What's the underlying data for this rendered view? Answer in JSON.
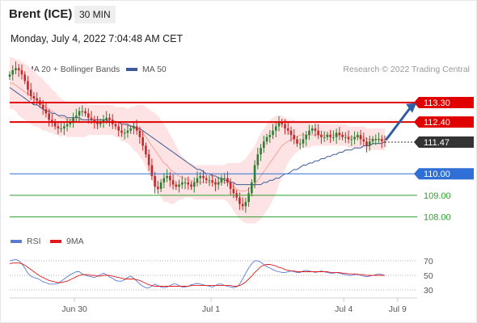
{
  "header": {
    "instrument": "Brent (ICE)",
    "timeframe": "30 MIN",
    "datetime": "Monday, July 4, 2022 7:04:48 AM CET"
  },
  "legend_top": [
    {
      "label": "MA 20 + Bollinger Bands",
      "color": "#f28b82"
    },
    {
      "label": "MA 50",
      "color": "#3d5a98"
    }
  ],
  "credit": "Research © 2022 Trading Central",
  "legend_bottom": [
    {
      "label": "RSI",
      "color": "#5b7bd5"
    },
    {
      "label": "9MA",
      "color": "#e31a1c"
    }
  ],
  "colors": {
    "up": "#2e7d32",
    "down": "#c62828",
    "resistance": "#e00000",
    "pivot": "#2f6fd6",
    "support": "#2e9e2e",
    "last": "#333333",
    "arrow": "#2f5ea8",
    "band": "#fde3e3",
    "ma20": "#f28b82",
    "ma50": "#3d5a98",
    "rsi": "#5b7bd5",
    "rsi_ma": "#e31a1c"
  },
  "chart_data": [
    {
      "type": "candlestick",
      "title": "Brent (ICE)",
      "timeframe": "30 MIN",
      "x_ticks": [
        "Jun 30",
        "Jul 1",
        "Jul 4",
        "Jul 9"
      ],
      "ylim": [
        107.5,
        114.5
      ],
      "levels": [
        {
          "value": 113.3,
          "label": "113.30",
          "kind": "resistance"
        },
        {
          "value": 112.4,
          "label": "112.40",
          "kind": "resistance"
        },
        {
          "value": 111.47,
          "label": "111.47",
          "kind": "last"
        },
        {
          "value": 110.0,
          "label": "110.00",
          "kind": "pivot"
        },
        {
          "value": 109.0,
          "label": "109.00",
          "kind": "support"
        },
        {
          "value": 108.0,
          "label": "108.00",
          "kind": "support"
        }
      ],
      "close": [
        114.6,
        114.8,
        114.9,
        114.8,
        114.6,
        114.3,
        113.9,
        113.6,
        113.5,
        113.4,
        113.2,
        113.0,
        112.8,
        112.5,
        112.4,
        112.2,
        112.1,
        112.1,
        112.2,
        112.3,
        112.4,
        112.6,
        112.7,
        112.9,
        112.9,
        112.8,
        112.6,
        112.5,
        112.4,
        112.3,
        112.4,
        112.5,
        112.6,
        112.5,
        112.3,
        112.2,
        112.0,
        111.9,
        111.9,
        112.0,
        112.1,
        112.2,
        112.0,
        111.7,
        111.3,
        110.9,
        110.4,
        109.9,
        109.4,
        109.3,
        109.6,
        109.8,
        109.9,
        109.7,
        109.5,
        109.4,
        109.5,
        109.6,
        109.6,
        109.5,
        109.4,
        109.6,
        109.8,
        109.9,
        109.8,
        109.7,
        109.7,
        109.6,
        109.5,
        109.6,
        109.8,
        109.8,
        109.6,
        109.3,
        109.1,
        108.9,
        108.6,
        108.5,
        108.7,
        109.1,
        109.6,
        110.4,
        110.9,
        111.2,
        111.5,
        111.7,
        111.8,
        112.0,
        112.2,
        112.4,
        112.3,
        112.1,
        112.0,
        111.8,
        111.6,
        111.4,
        111.4,
        111.6,
        111.8,
        112.0,
        112.1,
        112.0,
        111.8,
        111.7,
        111.7,
        111.8,
        111.7,
        111.7,
        111.9,
        111.8,
        111.7,
        111.7,
        111.6,
        111.6,
        111.7,
        111.8,
        111.6,
        111.5,
        111.3,
        111.5,
        111.6,
        111.6,
        111.6,
        111.5,
        111.47
      ],
      "ma20": [
        114.2,
        114.2,
        114.1,
        114.0,
        113.9,
        113.8,
        113.7,
        113.6,
        113.5,
        113.4,
        113.3,
        113.2,
        113.1,
        113.0,
        112.9,
        112.8,
        112.7,
        112.6,
        112.6,
        112.5,
        112.5,
        112.5,
        112.5,
        112.5,
        112.5,
        112.5,
        112.5,
        112.5,
        112.5,
        112.5,
        112.5,
        112.5,
        112.5,
        112.5,
        112.5,
        112.4,
        112.4,
        112.3,
        112.3,
        112.2,
        112.2,
        112.1,
        112.1,
        112.0,
        111.9,
        111.7,
        111.5,
        111.3,
        111.1,
        110.9,
        110.7,
        110.5,
        110.4,
        110.2,
        110.1,
        110.0,
        109.9,
        109.8,
        109.8,
        109.7,
        109.7,
        109.6,
        109.6,
        109.6,
        109.6,
        109.6,
        109.6,
        109.6,
        109.6,
        109.6,
        109.6,
        109.6,
        109.6,
        109.5,
        109.4,
        109.3,
        109.2,
        109.2,
        109.2,
        109.3,
        109.4,
        109.5,
        109.7,
        109.9,
        110.1,
        110.3,
        110.5,
        110.7,
        110.9,
        111.1,
        111.3,
        111.4,
        111.5,
        111.6,
        111.7,
        111.7,
        111.8,
        111.8,
        111.8,
        111.8,
        111.8,
        111.8,
        111.8,
        111.8,
        111.8,
        111.8,
        111.8,
        111.8,
        111.8,
        111.8,
        111.8,
        111.8,
        111.7,
        111.7,
        111.7,
        111.7,
        111.7,
        111.7,
        111.6,
        111.6,
        111.6,
        111.6,
        111.6,
        111.6,
        111.6
      ],
      "ma50": [
        114.0,
        113.9,
        113.8,
        113.7,
        113.6,
        113.5,
        113.4,
        113.3,
        113.2,
        113.2,
        113.1,
        113.0,
        112.9,
        112.9,
        112.8,
        112.8,
        112.7,
        112.7,
        112.7,
        112.6,
        112.6,
        112.6,
        112.6,
        112.6,
        112.5,
        112.5,
        112.5,
        112.5,
        112.5,
        112.5,
        112.5,
        112.5,
        112.5,
        112.4,
        112.4,
        112.4,
        112.4,
        112.3,
        112.3,
        112.3,
        112.2,
        112.2,
        112.1,
        112.1,
        112.0,
        111.9,
        111.8,
        111.7,
        111.6,
        111.5,
        111.4,
        111.3,
        111.2,
        111.1,
        111.0,
        110.9,
        110.8,
        110.7,
        110.6,
        110.5,
        110.4,
        110.3,
        110.2,
        110.2,
        110.1,
        110.0,
        110.0,
        109.9,
        109.9,
        109.8,
        109.8,
        109.7,
        109.7,
        109.6,
        109.6,
        109.5,
        109.5,
        109.5,
        109.5,
        109.5,
        109.5,
        109.5,
        109.5,
        109.5,
        109.6,
        109.6,
        109.7,
        109.7,
        109.8,
        109.8,
        109.9,
        110.0,
        110.0,
        110.1,
        110.2,
        110.2,
        110.3,
        110.4,
        110.4,
        110.5,
        110.5,
        110.6,
        110.6,
        110.7,
        110.7,
        110.8,
        110.8,
        110.9,
        110.9,
        111.0,
        111.0,
        111.1,
        111.1,
        111.1,
        111.2,
        111.2,
        111.2,
        111.3,
        111.3,
        111.3,
        111.4,
        111.4,
        111.4,
        111.4,
        111.5
      ],
      "bb_width": [
        1.2,
        1.2,
        1.2,
        1.3,
        1.3,
        1.3,
        1.3,
        1.3,
        1.3,
        1.2,
        1.2,
        1.2,
        1.1,
        1.1,
        1.0,
        1.0,
        0.9,
        0.9,
        0.8,
        0.8,
        0.8,
        0.8,
        0.8,
        0.8,
        0.8,
        0.8,
        0.7,
        0.7,
        0.7,
        0.7,
        0.7,
        0.7,
        0.7,
        0.7,
        0.7,
        0.7,
        0.7,
        0.8,
        0.8,
        0.8,
        0.9,
        1.0,
        1.1,
        1.2,
        1.3,
        1.4,
        1.5,
        1.6,
        1.7,
        1.8,
        1.8,
        1.8,
        1.7,
        1.6,
        1.5,
        1.3,
        1.1,
        1.0,
        0.9,
        0.8,
        0.8,
        0.8,
        0.8,
        0.8,
        0.8,
        0.8,
        0.8,
        0.8,
        0.8,
        0.8,
        0.8,
        0.8,
        0.9,
        1.0,
        1.1,
        1.2,
        1.3,
        1.4,
        1.5,
        1.6,
        1.7,
        1.8,
        1.9,
        2.0,
        2.0,
        2.0,
        2.0,
        1.9,
        1.8,
        1.6,
        1.4,
        1.2,
        1.0,
        0.9,
        0.8,
        0.7,
        0.6,
        0.6,
        0.6,
        0.6,
        0.5,
        0.5,
        0.5,
        0.5,
        0.5,
        0.5,
        0.5,
        0.5,
        0.5,
        0.5,
        0.5,
        0.5,
        0.5,
        0.5,
        0.5,
        0.5,
        0.5,
        0.5,
        0.5,
        0.5,
        0.5,
        0.5,
        0.5,
        0.5,
        0.5
      ]
    },
    {
      "type": "line",
      "title": "RSI",
      "y_ticks": [
        70,
        50,
        30
      ],
      "ylim": [
        20,
        80
      ],
      "series": [
        {
          "name": "RSI",
          "values": [
            70,
            71,
            72,
            70,
            66,
            60,
            53,
            49,
            47,
            46,
            44,
            41,
            40,
            38,
            38,
            38,
            39,
            42,
            45,
            48,
            51,
            53,
            55,
            55,
            52,
            50,
            49,
            48,
            47,
            49,
            51,
            53,
            51,
            48,
            46,
            43,
            42,
            42,
            44,
            47,
            49,
            46,
            42,
            38,
            35,
            33,
            33,
            35,
            38,
            36,
            34,
            33,
            34,
            36,
            38,
            38,
            36,
            34,
            34,
            35,
            37,
            38,
            39,
            38,
            37,
            36,
            35,
            34,
            36,
            38,
            38,
            36,
            35,
            34,
            33,
            34,
            38,
            45,
            53,
            60,
            66,
            70,
            70,
            68,
            65,
            62,
            60,
            58,
            56,
            55,
            54,
            54,
            55,
            56,
            55,
            54,
            54,
            56,
            57,
            56,
            55,
            54,
            55,
            56,
            55,
            54,
            53,
            53,
            54,
            53,
            52,
            51,
            50,
            50,
            51,
            52,
            50,
            49,
            48,
            49,
            50,
            51,
            52,
            51,
            50
          ]
        },
        {
          "name": "9MA",
          "values": [
            66,
            67,
            67,
            67,
            66,
            64,
            61,
            58,
            55,
            52,
            49,
            47,
            45,
            43,
            42,
            41,
            40,
            40,
            41,
            42,
            44,
            46,
            48,
            50,
            51,
            51,
            51,
            50,
            50,
            49,
            49,
            50,
            50,
            50,
            49,
            48,
            47,
            46,
            45,
            45,
            45,
            45,
            44,
            43,
            41,
            39,
            37,
            36,
            35,
            35,
            35,
            35,
            35,
            35,
            35,
            35,
            35,
            35,
            35,
            35,
            36,
            36,
            36,
            36,
            36,
            36,
            36,
            36,
            36,
            36,
            36,
            36,
            36,
            36,
            35,
            35,
            36,
            38,
            41,
            45,
            49,
            54,
            58,
            62,
            64,
            65,
            65,
            64,
            63,
            61,
            60,
            58,
            57,
            56,
            56,
            55,
            55,
            55,
            55,
            55,
            55,
            55,
            55,
            55,
            55,
            55,
            54,
            54,
            54,
            54,
            53,
            53,
            52,
            52,
            52,
            51,
            51,
            51,
            50,
            50,
            50,
            50,
            50,
            50,
            50
          ]
        }
      ]
    }
  ]
}
